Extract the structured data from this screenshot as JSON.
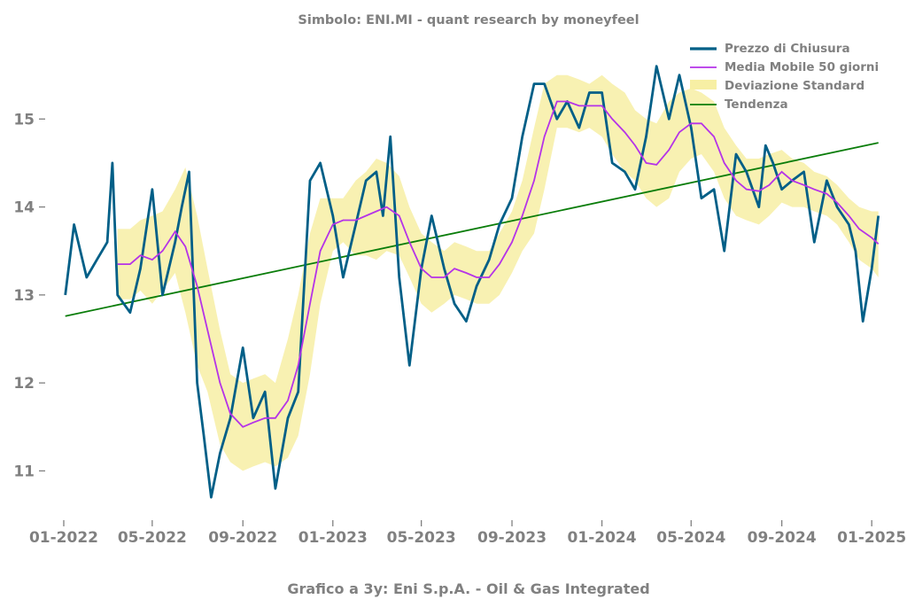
{
  "chart_data": {
    "type": "line",
    "title": "Simbolo: ENI.MI - quant research by moneyfeel",
    "subtitle": "Grafico a 3y: Eni S.p.A. - Oil & Gas Integrated",
    "x_tick_labels": [
      "01-2022",
      "05-2022",
      "09-2022",
      "01-2023",
      "05-2023",
      "09-2023",
      "01-2024",
      "05-2024",
      "09-2024",
      "01-2025"
    ],
    "y_tick_labels": [
      "11",
      "12",
      "13",
      "14",
      "15"
    ],
    "ylim": [
      10.45,
      15.95
    ],
    "xlim": [
      "2021-12-20",
      "2025-01-20"
    ],
    "grid": false,
    "legend_position": "top-right",
    "colors": {
      "price": "#005f87",
      "ma": "#b533e8",
      "band": "#f7efa4",
      "trend": "#0a7d0a",
      "text": "#808080"
    },
    "series": [
      {
        "name": "Prezzo di Chiusura",
        "x": [
          "2022-01-03",
          "2022-01-15",
          "2022-02-01",
          "2022-02-15",
          "2022-03-01",
          "2022-03-08",
          "2022-03-15",
          "2022-04-01",
          "2022-04-15",
          "2022-05-01",
          "2022-05-15",
          "2022-06-01",
          "2022-06-10",
          "2022-06-20",
          "2022-07-01",
          "2022-07-10",
          "2022-07-20",
          "2022-08-01",
          "2022-08-15",
          "2022-09-01",
          "2022-09-15",
          "2022-10-01",
          "2022-10-15",
          "2022-11-01",
          "2022-11-15",
          "2022-12-01",
          "2022-12-15",
          "2023-01-01",
          "2023-01-15",
          "2023-02-01",
          "2023-02-15",
          "2023-03-01",
          "2023-03-10",
          "2023-03-20",
          "2023-04-01",
          "2023-04-15",
          "2023-05-01",
          "2023-05-15",
          "2023-06-01",
          "2023-06-15",
          "2023-07-01",
          "2023-07-15",
          "2023-08-01",
          "2023-08-15",
          "2023-09-01",
          "2023-09-15",
          "2023-10-01",
          "2023-10-15",
          "2023-11-01",
          "2023-11-15",
          "2023-12-01",
          "2023-12-15",
          "2024-01-01",
          "2024-01-15",
          "2024-02-01",
          "2024-02-15",
          "2024-03-01",
          "2024-03-15",
          "2024-04-01",
          "2024-04-15",
          "2024-05-01",
          "2024-05-15",
          "2024-06-01",
          "2024-06-15",
          "2024-07-01",
          "2024-07-15",
          "2024-08-01",
          "2024-08-10",
          "2024-08-20",
          "2024-09-01",
          "2024-09-15",
          "2024-10-01",
          "2024-10-15",
          "2024-11-01",
          "2024-11-15",
          "2024-12-01",
          "2024-12-10",
          "2024-12-20",
          "2025-01-01",
          "2025-01-10"
        ],
        "y": [
          13.0,
          13.8,
          13.2,
          13.4,
          13.6,
          14.5,
          13.0,
          12.8,
          13.3,
          14.2,
          13.0,
          13.6,
          14.0,
          14.4,
          12.0,
          11.4,
          10.7,
          11.2,
          11.6,
          12.4,
          11.6,
          11.9,
          10.8,
          11.6,
          11.9,
          14.3,
          14.5,
          13.9,
          13.2,
          13.8,
          14.3,
          14.4,
          13.9,
          14.8,
          13.2,
          12.2,
          13.3,
          13.9,
          13.3,
          12.9,
          12.7,
          13.1,
          13.4,
          13.8,
          14.1,
          14.8,
          15.4,
          15.4,
          15.0,
          15.2,
          14.9,
          15.3,
          15.3,
          14.5,
          14.4,
          14.2,
          14.8,
          15.6,
          15.0,
          15.5,
          14.9,
          14.1,
          14.2,
          13.5,
          14.6,
          14.4,
          14.0,
          14.7,
          14.5,
          14.2,
          14.3,
          14.4,
          13.6,
          14.3,
          14.0,
          13.8,
          13.5,
          12.7,
          13.3,
          13.9
        ]
      },
      {
        "name": "Media Mobile 50 giorni",
        "x": [
          "2022-03-15",
          "2022-04-01",
          "2022-04-15",
          "2022-05-01",
          "2022-05-15",
          "2022-06-01",
          "2022-06-15",
          "2022-07-01",
          "2022-07-15",
          "2022-08-01",
          "2022-08-15",
          "2022-09-01",
          "2022-09-15",
          "2022-10-01",
          "2022-10-15",
          "2022-11-01",
          "2022-11-15",
          "2022-12-01",
          "2022-12-15",
          "2023-01-01",
          "2023-01-15",
          "2023-02-01",
          "2023-02-15",
          "2023-03-01",
          "2023-03-15",
          "2023-04-01",
          "2023-04-15",
          "2023-05-01",
          "2023-05-15",
          "2023-06-01",
          "2023-06-15",
          "2023-07-01",
          "2023-07-15",
          "2023-08-01",
          "2023-08-15",
          "2023-09-01",
          "2023-09-15",
          "2023-10-01",
          "2023-10-15",
          "2023-11-01",
          "2023-11-15",
          "2023-12-01",
          "2023-12-15",
          "2024-01-01",
          "2024-01-15",
          "2024-02-01",
          "2024-02-15",
          "2024-03-01",
          "2024-03-15",
          "2024-04-01",
          "2024-04-15",
          "2024-05-01",
          "2024-05-15",
          "2024-06-01",
          "2024-06-15",
          "2024-07-01",
          "2024-07-15",
          "2024-08-01",
          "2024-08-15",
          "2024-09-01",
          "2024-09-15",
          "2024-10-01",
          "2024-10-15",
          "2024-11-01",
          "2024-11-15",
          "2024-12-01",
          "2024-12-15",
          "2025-01-01",
          "2025-01-10"
        ],
        "y": [
          13.35,
          13.35,
          13.45,
          13.4,
          13.5,
          13.72,
          13.55,
          13.1,
          12.6,
          12.0,
          11.65,
          11.5,
          11.55,
          11.6,
          11.6,
          11.8,
          12.2,
          12.9,
          13.5,
          13.8,
          13.85,
          13.85,
          13.9,
          13.95,
          14.0,
          13.9,
          13.6,
          13.3,
          13.2,
          13.2,
          13.3,
          13.25,
          13.2,
          13.2,
          13.35,
          13.6,
          13.9,
          14.3,
          14.8,
          15.2,
          15.2,
          15.15,
          15.15,
          15.15,
          15.0,
          14.85,
          14.7,
          14.5,
          14.48,
          14.65,
          14.85,
          14.95,
          14.95,
          14.8,
          14.5,
          14.3,
          14.2,
          14.18,
          14.25,
          14.4,
          14.3,
          14.25,
          14.2,
          14.15,
          14.05,
          13.9,
          13.75,
          13.65,
          13.58
        ]
      },
      {
        "name": "Deviazione Standard",
        "x": [
          "2022-03-15",
          "2022-04-01",
          "2022-04-15",
          "2022-05-01",
          "2022-05-15",
          "2022-06-01",
          "2022-06-15",
          "2022-07-01",
          "2022-07-15",
          "2022-08-01",
          "2022-08-15",
          "2022-09-01",
          "2022-09-15",
          "2022-10-01",
          "2022-10-15",
          "2022-11-01",
          "2022-11-15",
          "2022-12-01",
          "2022-12-15",
          "2023-01-01",
          "2023-01-15",
          "2023-02-01",
          "2023-02-15",
          "2023-03-01",
          "2023-03-15",
          "2023-04-01",
          "2023-04-15",
          "2023-05-01",
          "2023-05-15",
          "2023-06-01",
          "2023-06-15",
          "2023-07-01",
          "2023-07-15",
          "2023-08-01",
          "2023-08-15",
          "2023-09-01",
          "2023-09-15",
          "2023-10-01",
          "2023-10-15",
          "2023-11-01",
          "2023-11-15",
          "2023-12-01",
          "2023-12-15",
          "2024-01-01",
          "2024-01-15",
          "2024-02-01",
          "2024-02-15",
          "2024-03-01",
          "2024-03-15",
          "2024-04-01",
          "2024-04-15",
          "2024-05-01",
          "2024-05-15",
          "2024-06-01",
          "2024-06-15",
          "2024-07-01",
          "2024-07-15",
          "2024-08-01",
          "2024-08-15",
          "2024-09-01",
          "2024-09-15",
          "2024-10-01",
          "2024-10-15",
          "2024-11-01",
          "2024-11-15",
          "2024-12-01",
          "2024-12-15",
          "2025-01-01",
          "2025-01-10"
        ],
        "upper": [
          13.75,
          13.75,
          13.85,
          13.9,
          13.95,
          14.2,
          14.45,
          13.9,
          13.3,
          12.6,
          12.1,
          12.0,
          12.05,
          12.1,
          12.0,
          12.5,
          13.0,
          13.7,
          14.1,
          14.1,
          14.1,
          14.3,
          14.4,
          14.55,
          14.5,
          14.35,
          14.0,
          13.7,
          13.6,
          13.5,
          13.6,
          13.55,
          13.5,
          13.5,
          13.7,
          13.95,
          14.3,
          14.9,
          15.4,
          15.5,
          15.5,
          15.45,
          15.4,
          15.5,
          15.4,
          15.3,
          15.1,
          15.0,
          14.95,
          15.2,
          15.3,
          15.35,
          15.3,
          15.2,
          14.9,
          14.7,
          14.55,
          14.55,
          14.6,
          14.65,
          14.55,
          14.5,
          14.4,
          14.35,
          14.25,
          14.1,
          14.0,
          13.95,
          13.95
        ],
        "lower": [
          12.95,
          12.95,
          13.05,
          12.9,
          13.05,
          13.25,
          12.8,
          12.2,
          11.9,
          11.3,
          11.1,
          11.0,
          11.05,
          11.1,
          11.05,
          11.15,
          11.4,
          12.1,
          12.9,
          13.5,
          13.6,
          13.45,
          13.45,
          13.4,
          13.5,
          13.45,
          13.2,
          12.9,
          12.8,
          12.9,
          13.0,
          12.95,
          12.9,
          12.9,
          13.0,
          13.25,
          13.5,
          13.7,
          14.2,
          14.9,
          14.9,
          14.85,
          14.9,
          14.8,
          14.6,
          14.4,
          14.3,
          14.1,
          14.0,
          14.1,
          14.4,
          14.55,
          14.6,
          14.4,
          14.1,
          13.9,
          13.85,
          13.8,
          13.9,
          14.05,
          14.0,
          14.0,
          13.95,
          13.9,
          13.8,
          13.6,
          13.4,
          13.3,
          13.2
        ]
      },
      {
        "name": "Tendenza",
        "x": [
          "2022-01-03",
          "2025-01-10"
        ],
        "y": [
          12.76,
          14.73
        ]
      }
    ]
  }
}
